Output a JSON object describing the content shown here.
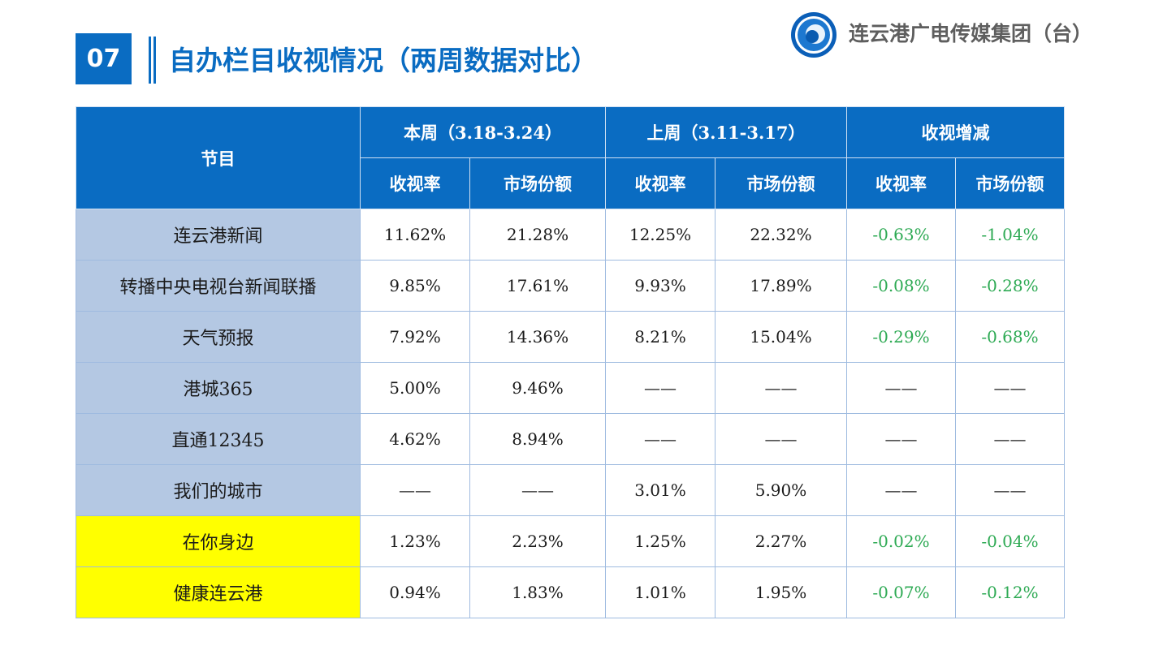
{
  "header": {
    "section_number": "07",
    "title": "自办栏目收视情况（两周数据对比）",
    "logo_text": "连云港广电传媒集团（台）"
  },
  "colors": {
    "accent": "#0a6cc2",
    "name_cell": "#b4c8e3",
    "highlight": "#ffff00",
    "change_text": "#2eaa54"
  },
  "table": {
    "col_program": "节目",
    "groups": [
      "本周（3.18-3.24）",
      "上周（3.11-3.17）",
      "收视增减"
    ],
    "sub_headers": [
      "收视率",
      "市场份额",
      "收视率",
      "市场份额",
      "收视率",
      "市场份额"
    ],
    "rows": [
      {
        "name": "连云港新闻",
        "values": [
          "11.62%",
          "21.28%",
          "12.25%",
          "22.32%",
          "-0.63%",
          "-1.04%"
        ]
      },
      {
        "name": "转播中央电视台新闻联播",
        "values": [
          "9.85%",
          "17.61%",
          "9.93%",
          "17.89%",
          "-0.08%",
          "-0.28%"
        ]
      },
      {
        "name": "天气预报",
        "values": [
          "7.92%",
          "14.36%",
          "8.21%",
          "15.04%",
          "-0.29%",
          "-0.68%"
        ]
      },
      {
        "name": "港城365",
        "values": [
          "5.00%",
          "9.46%",
          "——",
          "——",
          "——",
          "——"
        ]
      },
      {
        "name": "直通12345",
        "values": [
          "4.62%",
          "8.94%",
          "——",
          "——",
          "——",
          "——"
        ]
      },
      {
        "name": "我们的城市",
        "values": [
          "——",
          "——",
          "3.01%",
          "5.90%",
          "——",
          "——"
        ]
      },
      {
        "name": "在你身边",
        "values": [
          "1.23%",
          "2.23%",
          "1.25%",
          "2.27%",
          "-0.02%",
          "-0.04%"
        ]
      },
      {
        "name": "健康连云港",
        "values": [
          "0.94%",
          "1.83%",
          "1.01%",
          "1.95%",
          "-0.07%",
          "-0.12%"
        ]
      }
    ]
  }
}
